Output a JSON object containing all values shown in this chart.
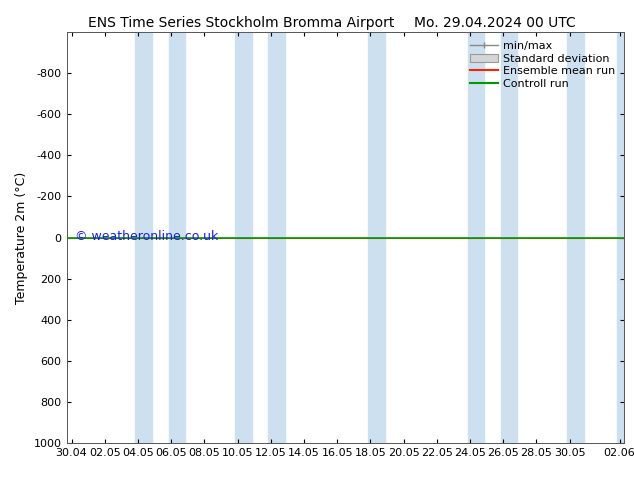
{
  "title_left": "ENS Time Series Stockholm Bromma Airport",
  "title_right": "Mo. 29.04.2024 00 UTC",
  "ylabel": "Temperature 2m (°C)",
  "ylim_bottom": 1000,
  "ylim_top": -1000,
  "yticks": [
    -800,
    -600,
    -400,
    -200,
    0,
    200,
    400,
    600,
    800,
    1000
  ],
  "xtick_labels": [
    "30.04",
    "02.05",
    "04.05",
    "06.05",
    "08.05",
    "10.05",
    "12.05",
    "14.05",
    "16.05",
    "18.05",
    "20.05",
    "22.05",
    "24.05",
    "26.05",
    "28.05",
    "30.05",
    "02.06"
  ],
  "xtick_positions": [
    0,
    2,
    4,
    6,
    8,
    10,
    12,
    14,
    16,
    18,
    20,
    22,
    24,
    26,
    28,
    30,
    33
  ],
  "xlim_min": -0.3,
  "xlim_max": 33.3,
  "blue_bands": [
    [
      3.85,
      4.85
    ],
    [
      5.85,
      6.85
    ],
    [
      9.85,
      10.85
    ],
    [
      11.85,
      12.85
    ],
    [
      17.85,
      18.85
    ],
    [
      23.85,
      24.85
    ],
    [
      25.85,
      26.85
    ],
    [
      29.85,
      30.85
    ],
    [
      32.85,
      33.3
    ]
  ],
  "blue_band_color": "#cce0f0",
  "control_run_y": 0,
  "control_run_color": "#009900",
  "ensemble_mean_color": "#ff2200",
  "watermark": "© weatheronline.co.uk",
  "watermark_color": "#1a1aff",
  "bg_color": "#ffffff",
  "legend_items": [
    "min/max",
    "Standard deviation",
    "Ensemble mean run",
    "Controll run"
  ],
  "minmax_color": "#888888",
  "std_color": "#bbbbbb",
  "title_fontsize": 10,
  "ylabel_fontsize": 9,
  "tick_fontsize": 8,
  "legend_fontsize": 8,
  "watermark_fontsize": 9
}
